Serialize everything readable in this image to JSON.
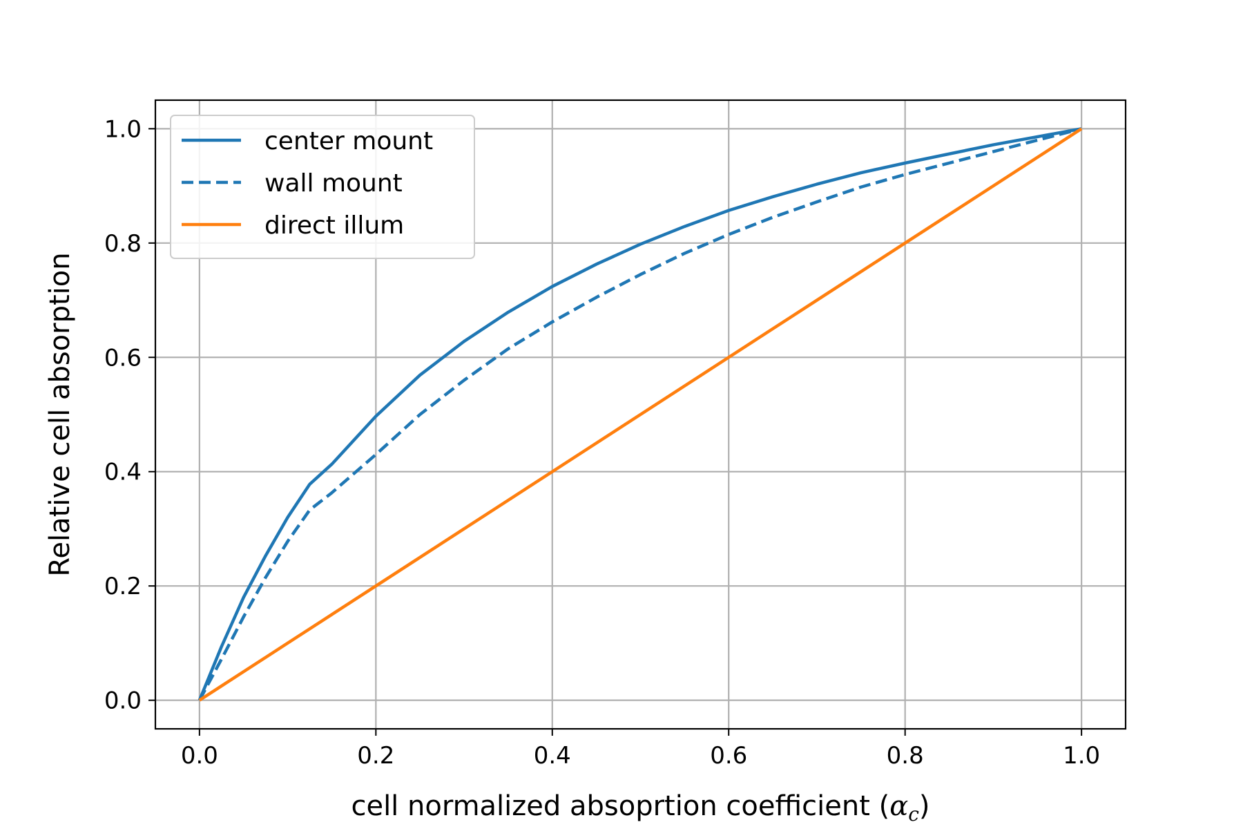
{
  "chart_data": {
    "type": "line",
    "title": "",
    "xlabel": "cell normalized absoprtion coefficient (",
    "xlabel_symbol": "α",
    "xlabel_subscript": "c",
    "xlabel_close": ")",
    "ylabel": "Relative cell absorption",
    "xlim": [
      -0.05,
      1.05
    ],
    "ylim": [
      -0.05,
      1.05
    ],
    "xticks": [
      0.0,
      0.2,
      0.4,
      0.6,
      0.8,
      1.0
    ],
    "yticks": [
      0.0,
      0.2,
      0.4,
      0.6,
      0.8,
      1.0
    ],
    "xtick_labels": [
      "0.0",
      "0.2",
      "0.4",
      "0.6",
      "0.8",
      "1.0"
    ],
    "ytick_labels": [
      "0.0",
      "0.2",
      "0.4",
      "0.6",
      "0.8",
      "1.0"
    ],
    "grid": true,
    "legend_position": "top-left",
    "x": [
      0.0,
      0.025,
      0.05,
      0.075,
      0.1,
      0.125,
      0.15,
      0.2,
      0.25,
      0.3,
      0.35,
      0.4,
      0.45,
      0.5,
      0.55,
      0.6,
      0.65,
      0.7,
      0.75,
      0.8,
      0.85,
      0.9,
      0.95,
      1.0
    ],
    "series": [
      {
        "name": "center mount",
        "color": "#1f77b4",
        "style": "solid",
        "values": [
          0.0,
          0.094,
          0.18,
          0.253,
          0.32,
          0.378,
          0.413,
          0.497,
          0.569,
          0.628,
          0.679,
          0.724,
          0.763,
          0.798,
          0.829,
          0.857,
          0.881,
          0.903,
          0.923,
          0.94,
          0.956,
          0.972,
          0.986,
          1.0
        ]
      },
      {
        "name": "wall mount",
        "color": "#1f77b4",
        "style": "dashed",
        "values": [
          0.0,
          0.072,
          0.146,
          0.215,
          0.278,
          0.333,
          0.363,
          0.43,
          0.5,
          0.56,
          0.615,
          0.662,
          0.705,
          0.745,
          0.782,
          0.815,
          0.845,
          0.872,
          0.898,
          0.92,
          0.94,
          0.96,
          0.98,
          1.0
        ]
      },
      {
        "name": "direct illum",
        "color": "#ff7f0e",
        "style": "solid",
        "values": [
          0.0,
          0.025,
          0.05,
          0.075,
          0.1,
          0.125,
          0.15,
          0.2,
          0.25,
          0.3,
          0.35,
          0.4,
          0.45,
          0.5,
          0.55,
          0.6,
          0.65,
          0.7,
          0.75,
          0.8,
          0.85,
          0.9,
          0.95,
          1.0
        ]
      }
    ]
  }
}
